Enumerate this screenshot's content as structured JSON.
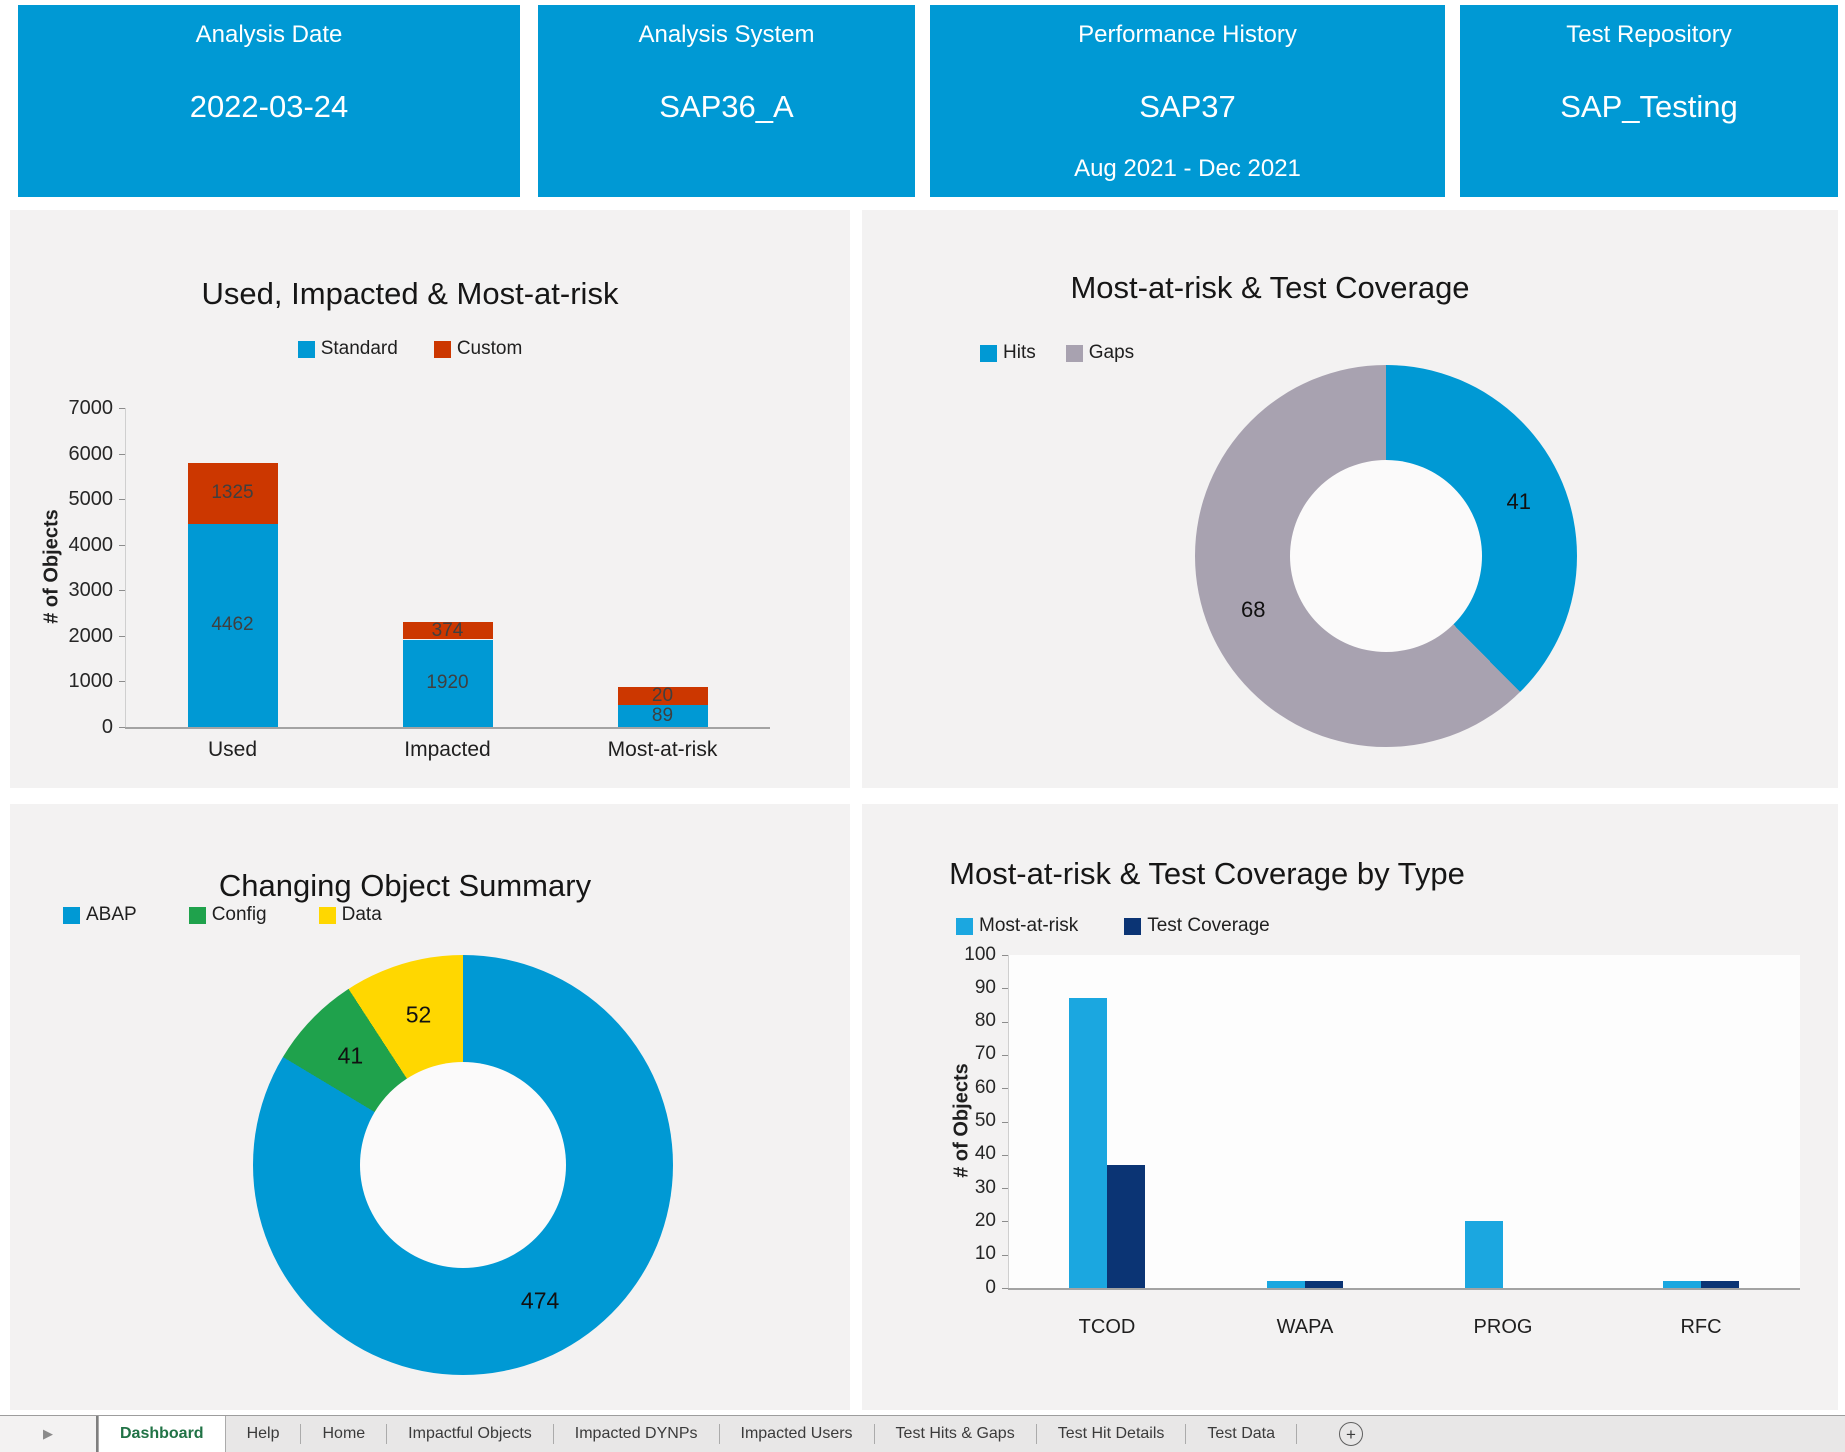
{
  "cards": [
    {
      "title": "Analysis Date",
      "value": "2022-03-24",
      "subvalue": ""
    },
    {
      "title": "Analysis System",
      "value": "SAP36_A",
      "subvalue": ""
    },
    {
      "title": "Performance History",
      "value": "SAP37",
      "subvalue": "Aug 2021 - Dec 2021"
    },
    {
      "title": "Test Repository",
      "value": "SAP_Testing",
      "subvalue": ""
    }
  ],
  "colors": {
    "card_blue": "#0099D4",
    "standard_blue": "#0099D4",
    "custom_red": "#CC3700",
    "gaps_gray": "#A8A2B0",
    "config_green": "#1FA24C",
    "data_yellow": "#FFD700",
    "light_blue": "#1BA7E0",
    "navy": "#0B3474",
    "excel_green": "#217346"
  },
  "chart_data": [
    {
      "id": "used-impacted-risk",
      "type": "bar",
      "stacked": true,
      "title": "Used, Impacted & Most-at-risk",
      "xlabel": "",
      "ylabel": "# of Objects",
      "ylim": [
        0,
        7000
      ],
      "ytick_step": 1000,
      "grid": false,
      "legend_position": "top-center",
      "categories": [
        "Used",
        "Impacted",
        "Most-at-risk"
      ],
      "series": [
        {
          "name": "Standard",
          "color": "#0099D4",
          "values": [
            4462,
            1920,
            89
          ],
          "render_values": [
            4462,
            1920,
            480
          ]
        },
        {
          "name": "Custom",
          "color": "#CC3700",
          "values": [
            1325,
            374,
            20
          ],
          "render_values": [
            1325,
            374,
            395
          ]
        }
      ]
    },
    {
      "id": "risk-test-coverage",
      "type": "donut",
      "title": "Most-at-risk & Test Coverage",
      "legend_position": "top-left",
      "segments": [
        {
          "label": "Hits",
          "value": 41,
          "color": "#0099D4"
        },
        {
          "label": "Gaps",
          "value": 68,
          "color": "#A8A2B0"
        }
      ]
    },
    {
      "id": "changing-object-summary",
      "type": "donut",
      "title": "Changing Object Summary",
      "legend_position": "top-left",
      "segments": [
        {
          "label": "ABAP",
          "value": 474,
          "color": "#0099D4"
        },
        {
          "label": "Config",
          "value": 41,
          "color": "#1FA24C"
        },
        {
          "label": "Data",
          "value": 52,
          "color": "#FFD700"
        }
      ]
    },
    {
      "id": "risk-test-coverage-by-type",
      "type": "bar",
      "stacked": false,
      "title": "Most-at-risk & Test Coverage by Type",
      "xlabel": "",
      "ylabel": "# of Objects",
      "ylim": [
        0,
        100
      ],
      "ytick_step": 10,
      "grid": false,
      "legend_position": "top-left",
      "categories": [
        "TCOD",
        "WAPA",
        "PROG",
        "RFC"
      ],
      "series": [
        {
          "name": "Most-at-risk",
          "color": "#1BA7E0",
          "values": [
            87,
            2,
            20,
            2
          ]
        },
        {
          "name": "Test Coverage",
          "color": "#0B3474",
          "values": [
            37,
            2,
            0,
            2
          ]
        }
      ]
    }
  ],
  "tabbar": {
    "nav_icon": "▶",
    "add_sheet_label": "+",
    "tabs": [
      {
        "label": "Dashboard",
        "active": true
      },
      {
        "label": "Help",
        "active": false
      },
      {
        "label": "Home",
        "active": false
      },
      {
        "label": "Impactful Objects",
        "active": false
      },
      {
        "label": "Impacted DYNPs",
        "active": false
      },
      {
        "label": "Impacted Users",
        "active": false
      },
      {
        "label": "Test Hits & Gaps",
        "active": false
      },
      {
        "label": "Test Hit Details",
        "active": false
      },
      {
        "label": "Test Data",
        "active": false
      }
    ]
  }
}
